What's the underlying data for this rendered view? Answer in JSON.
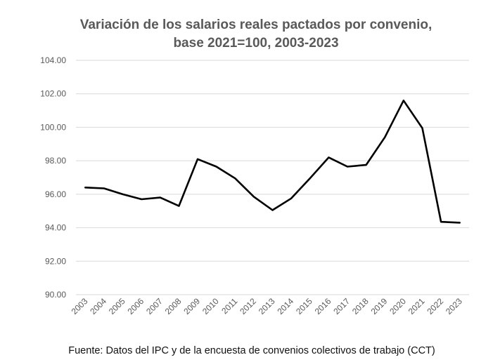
{
  "chart_data": {
    "type": "line",
    "title_lines": [
      "Variación de los salarios reales pactados por convenio,",
      "base 2021=100, 2003-2023"
    ],
    "x": [
      "2003",
      "2004",
      "2005",
      "2006",
      "2007",
      "2008",
      "2009",
      "2010",
      "2011",
      "2012",
      "2013",
      "2014",
      "2015",
      "2016",
      "2017",
      "2018",
      "2019",
      "2020",
      "2021",
      "2022",
      "2023"
    ],
    "series": [
      {
        "values": [
          96.4,
          96.35,
          96.0,
          95.7,
          95.8,
          95.3,
          98.1,
          97.65,
          96.95,
          95.85,
          95.05,
          95.75,
          96.95,
          98.2,
          97.65,
          97.75,
          99.4,
          101.6,
          99.95,
          94.35,
          94.3
        ]
      }
    ],
    "ylim": [
      90,
      104
    ],
    "y_ticks": [
      "90.00",
      "92.00",
      "94.00",
      "96.00",
      "98.00",
      "100.00",
      "102.00",
      "104.00"
    ],
    "grid": true,
    "line_color": "#000000",
    "source": "Fuente: Datos del IPC y de la encuesta de convenios colectivos de trabajo (CCT)"
  }
}
